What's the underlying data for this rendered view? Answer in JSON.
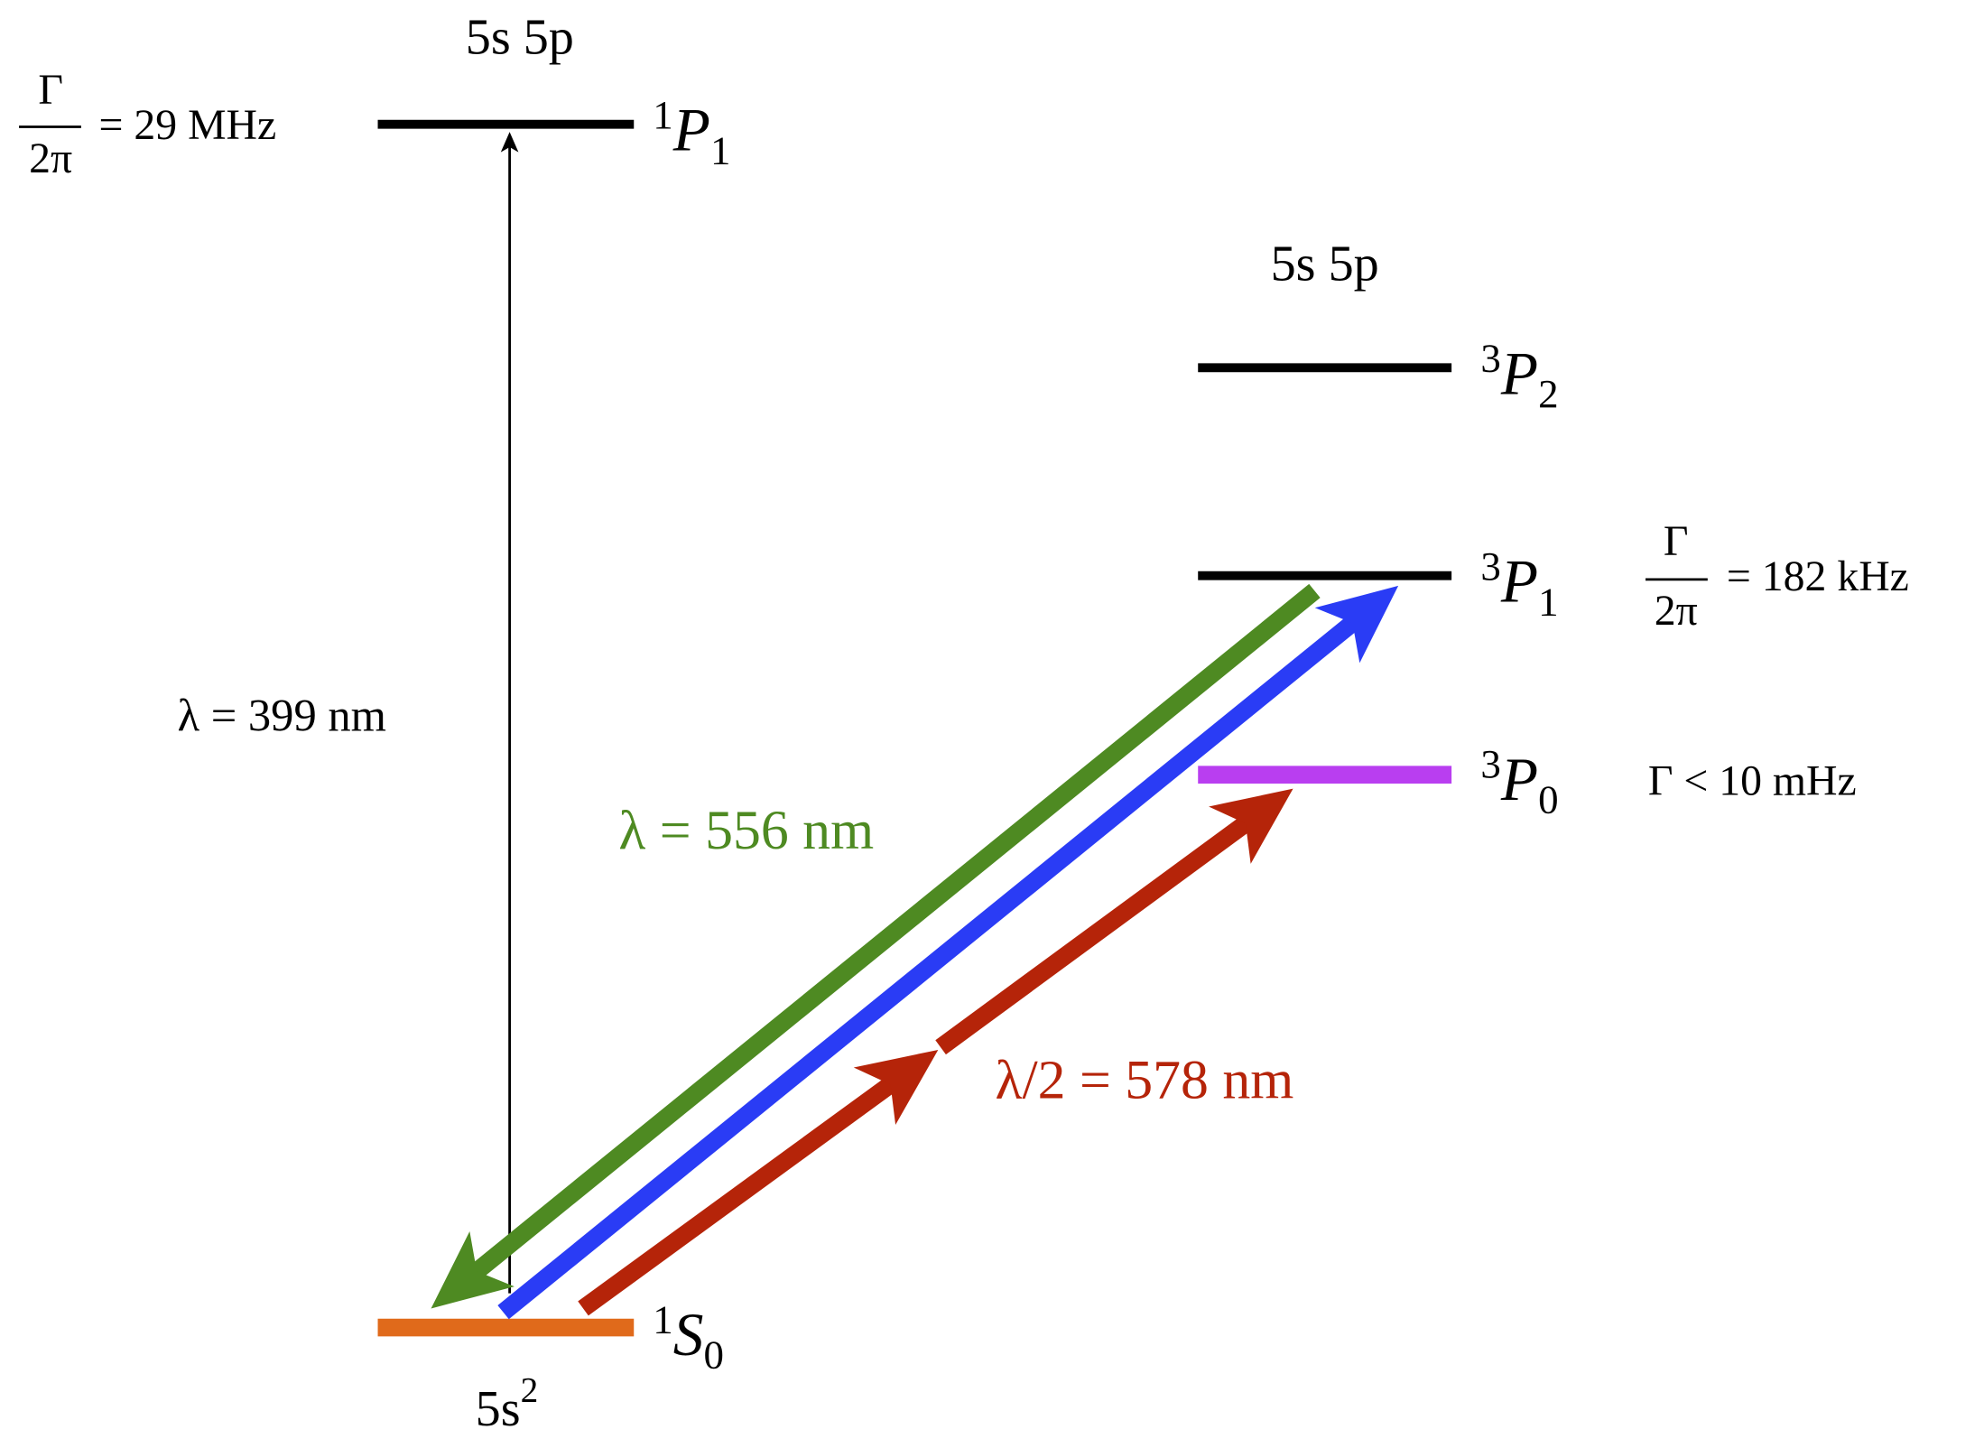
{
  "singlet": {
    "config": "5s 5p",
    "term": {
      "mult": "1",
      "letter": "P",
      "j": "1"
    },
    "width": {
      "numerator": "Γ",
      "denominator": "2π",
      "text": "= 29 MHz"
    }
  },
  "ground": {
    "config": {
      "base": "5s",
      "sup": "2"
    },
    "term": {
      "mult": "1",
      "letter": "S",
      "j": "0"
    }
  },
  "triplet": {
    "config": "5s 5p",
    "levels": [
      {
        "term": {
          "mult": "3",
          "letter": "P",
          "j": "2"
        }
      },
      {
        "term": {
          "mult": "3",
          "letter": "P",
          "j": "1"
        },
        "width": {
          "numerator": "Γ",
          "denominator": "2π",
          "text": "= 182 kHz"
        }
      },
      {
        "term": {
          "mult": "3",
          "letter": "P",
          "j": "0"
        },
        "width_text": "Γ < 10 mHz"
      }
    ]
  },
  "transitions": [
    {
      "label": "λ = 399 nm"
    },
    {
      "label": "λ = 556 nm"
    },
    {
      "label": "λ/2 = 578 nm"
    }
  ]
}
